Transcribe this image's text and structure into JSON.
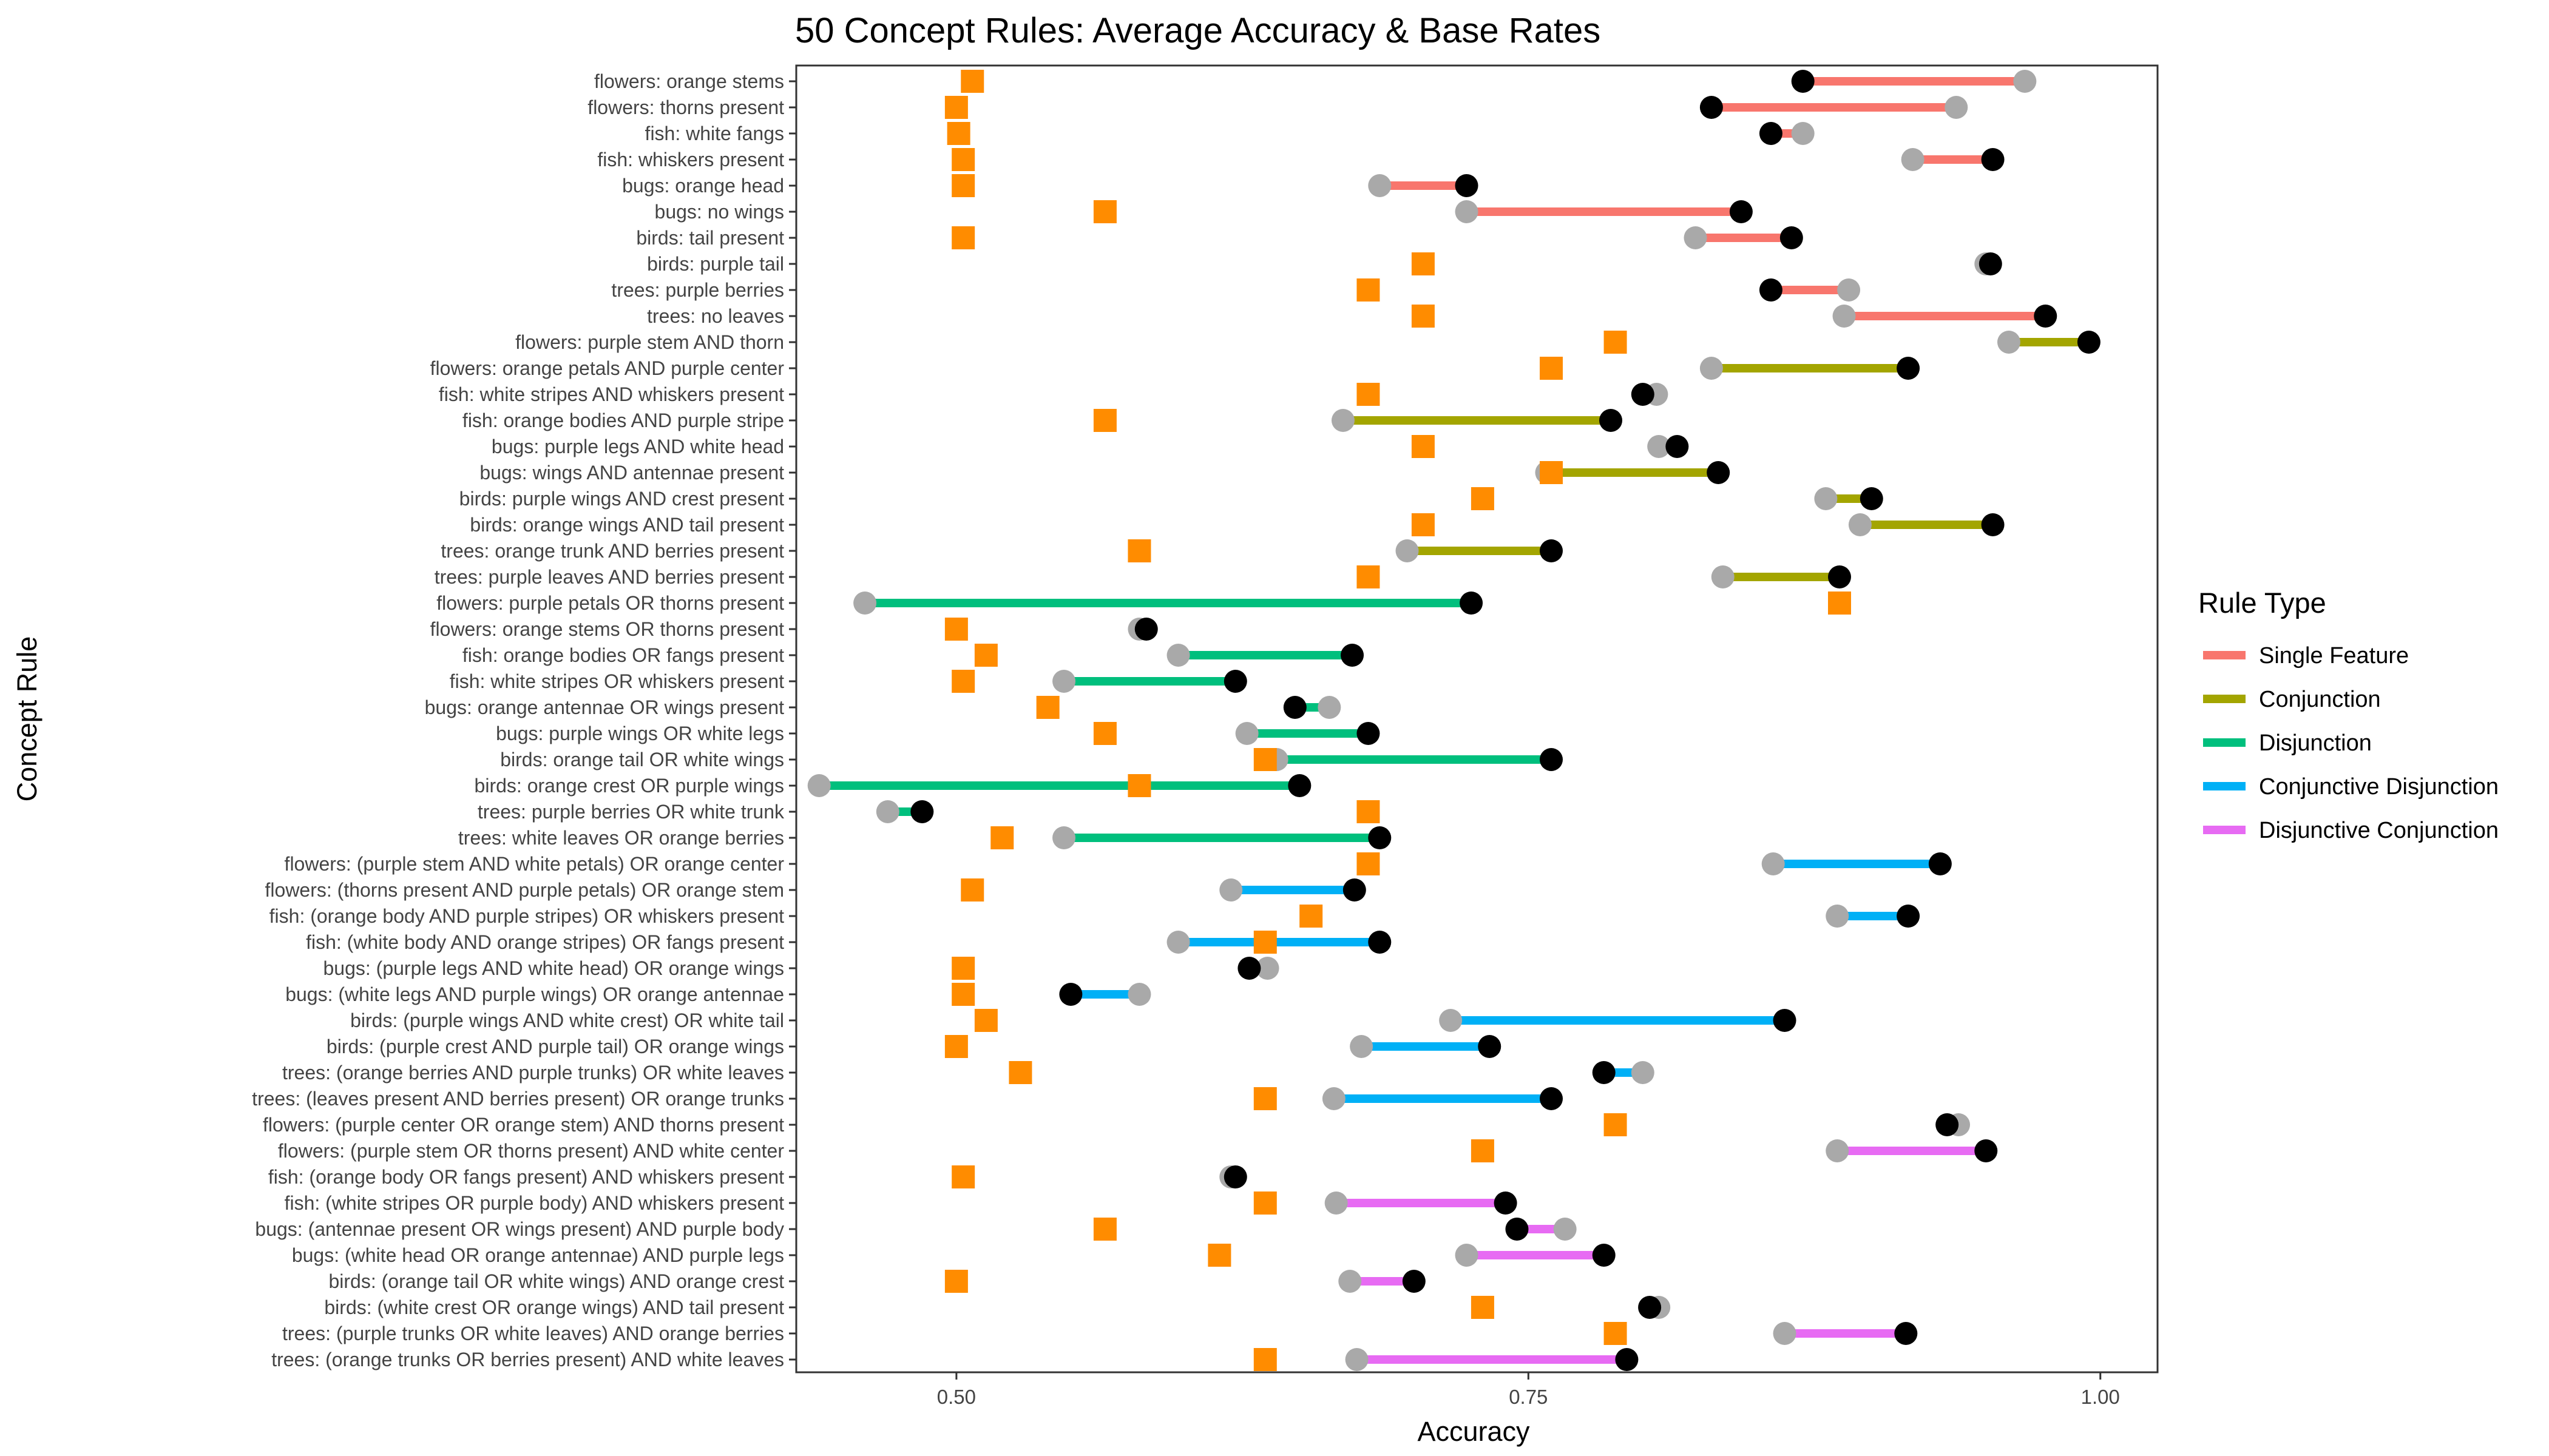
{
  "chart_data": {
    "type": "dumbbell",
    "title": "50 Concept Rules: Average Accuracy & Base Rates",
    "xlabel": "Accuracy",
    "ylabel": "Concept Rule",
    "xlim": [
      0.43,
      1.025
    ],
    "xticks": [
      0.5,
      0.75,
      1.0
    ],
    "xtick_labels": [
      "0.50",
      "0.75",
      "1.00"
    ],
    "grid": false,
    "legend": {
      "title": "Rule Type",
      "position": "right",
      "entries": [
        {
          "name": "Single Feature",
          "color": "#F8766D"
        },
        {
          "name": "Conjunction",
          "color": "#A3A500"
        },
        {
          "name": "Disjunction",
          "color": "#00BF7D"
        },
        {
          "name": "Conjunctive Disjunction",
          "color": "#00B0F6"
        },
        {
          "name": "Disjunctive Conjunction",
          "color": "#E76BF3"
        }
      ]
    },
    "marker_colors": {
      "gray_point": "#A9A9A9",
      "black_point": "#000000",
      "base_rate_square": "#FF8C00"
    },
    "rows": [
      {
        "rule": "flowers: orange stems",
        "type": "Single Feature",
        "gray": 0.967,
        "black": 0.87,
        "base": 0.507
      },
      {
        "rule": "flowers: thorns present",
        "type": "Single Feature",
        "gray": 0.937,
        "black": 0.83,
        "base": 0.5
      },
      {
        "rule": "fish: white fangs",
        "type": "Single Feature",
        "gray": 0.87,
        "black": 0.856,
        "base": 0.501
      },
      {
        "rule": "fish: whiskers present",
        "type": "Single Feature",
        "gray": 0.918,
        "black": 0.953,
        "base": 0.503
      },
      {
        "rule": "bugs: orange head",
        "type": "Single Feature",
        "gray": 0.685,
        "black": 0.723,
        "base": 0.503
      },
      {
        "rule": "bugs: no wings",
        "type": "Single Feature",
        "gray": 0.723,
        "black": 0.843,
        "base": 0.565
      },
      {
        "rule": "birds: tail present",
        "type": "Single Feature",
        "gray": 0.823,
        "black": 0.865,
        "base": 0.503
      },
      {
        "rule": "birds: purple tail",
        "type": "Single Feature",
        "gray": 0.95,
        "black": 0.952,
        "base": 0.704
      },
      {
        "rule": "trees: purple berries",
        "type": "Single Feature",
        "gray": 0.89,
        "black": 0.856,
        "base": 0.68
      },
      {
        "rule": "trees: no leaves",
        "type": "Single Feature",
        "gray": 0.888,
        "black": 0.976,
        "base": 0.704
      },
      {
        "rule": "flowers: purple stem AND thorn",
        "type": "Conjunction",
        "gray": 0.96,
        "black": 0.995,
        "base": 0.788
      },
      {
        "rule": "flowers: orange petals AND purple center",
        "type": "Conjunction",
        "gray": 0.83,
        "black": 0.916,
        "base": 0.76
      },
      {
        "rule": "fish: white stripes AND whiskers  present",
        "type": "Conjunction",
        "gray": 0.806,
        "black": 0.8,
        "base": 0.68
      },
      {
        "rule": "fish: orange bodies AND purple stripe",
        "type": "Conjunction",
        "gray": 0.669,
        "black": 0.786,
        "base": 0.565
      },
      {
        "rule": "bugs: purple legs AND white head",
        "type": "Conjunction",
        "gray": 0.807,
        "black": 0.815,
        "base": 0.704
      },
      {
        "rule": "bugs: wings AND antennae present",
        "type": "Conjunction",
        "gray": 0.758,
        "black": 0.833,
        "base": 0.76
      },
      {
        "rule": "birds: purple wings AND crest present",
        "type": "Conjunction",
        "gray": 0.88,
        "black": 0.9,
        "base": 0.73
      },
      {
        "rule": "birds: orange wings AND tail present",
        "type": "Conjunction",
        "gray": 0.895,
        "black": 0.953,
        "base": 0.704
      },
      {
        "rule": "trees: orange trunk AND berries present",
        "type": "Conjunction",
        "gray": 0.697,
        "black": 0.76,
        "base": 0.58
      },
      {
        "rule": "trees: purple leaves AND berries present",
        "type": "Conjunction",
        "gray": 0.835,
        "black": 0.886,
        "base": 0.68
      },
      {
        "rule": "flowers: purple petals OR thorns present",
        "type": "Disjunction",
        "gray": 0.46,
        "black": 0.725,
        "base": 0.886
      },
      {
        "rule": "flowers: orange stems OR thorns present",
        "type": "Disjunction",
        "gray": 0.58,
        "black": 0.583,
        "base": 0.5
      },
      {
        "rule": "fish: orange bodies OR fangs present",
        "type": "Disjunction",
        "gray": 0.597,
        "black": 0.673,
        "base": 0.513
      },
      {
        "rule": "fish: white stripes OR whiskers present",
        "type": "Disjunction",
        "gray": 0.547,
        "black": 0.622,
        "base": 0.503
      },
      {
        "rule": "bugs: orange antennae OR wings present",
        "type": "Disjunction",
        "gray": 0.663,
        "black": 0.648,
        "base": 0.54
      },
      {
        "rule": "bugs: purple wings OR white legs",
        "type": "Disjunction",
        "gray": 0.627,
        "black": 0.68,
        "base": 0.565
      },
      {
        "rule": "birds: orange tail OR white wings",
        "type": "Disjunction",
        "gray": 0.64,
        "black": 0.76,
        "base": 0.635
      },
      {
        "rule": "birds: orange crest OR purple wings",
        "type": "Disjunction",
        "gray": 0.44,
        "black": 0.65,
        "base": 0.58
      },
      {
        "rule": "trees: purple berries OR white trunk",
        "type": "Disjunction",
        "gray": 0.47,
        "black": 0.485,
        "base": 0.68
      },
      {
        "rule": "trees: white leaves OR orange berries",
        "type": "Disjunction",
        "gray": 0.547,
        "black": 0.685,
        "base": 0.52
      },
      {
        "rule": "flowers: (purple stem AND white petals) OR orange center",
        "type": "Conjunctive Disjunction",
        "gray": 0.857,
        "black": 0.93,
        "base": 0.68
      },
      {
        "rule": "flowers: (thorns present AND purple petals) OR orange stem",
        "type": "Conjunctive Disjunction",
        "gray": 0.62,
        "black": 0.674,
        "base": 0.507
      },
      {
        "rule": "fish: (orange body AND purple stripes) OR whiskers present",
        "type": "Conjunctive Disjunction",
        "gray": 0.885,
        "black": 0.916,
        "base": 0.655
      },
      {
        "rule": "fish: (white body AND orange stripes) OR fangs present",
        "type": "Conjunctive Disjunction",
        "gray": 0.597,
        "black": 0.685,
        "base": 0.635
      },
      {
        "rule": "bugs: (purple legs AND white head) OR orange wings",
        "type": "Conjunctive Disjunction",
        "gray": 0.636,
        "black": 0.628,
        "base": 0.503
      },
      {
        "rule": "bugs: (white legs AND purple wings) OR orange antennae",
        "type": "Conjunctive Disjunction",
        "gray": 0.58,
        "black": 0.55,
        "base": 0.503
      },
      {
        "rule": "birds: (purple wings AND white crest) OR white tail",
        "type": "Conjunctive Disjunction",
        "gray": 0.716,
        "black": 0.862,
        "base": 0.513
      },
      {
        "rule": "birds: (purple crest AND purple tail) OR orange wings",
        "type": "Conjunctive Disjunction",
        "gray": 0.677,
        "black": 0.733,
        "base": 0.5
      },
      {
        "rule": "trees: (orange berries AND purple trunks) OR white leaves",
        "type": "Conjunctive Disjunction",
        "gray": 0.8,
        "black": 0.783,
        "base": 0.528
      },
      {
        "rule": "trees: (leaves present AND berries present) OR orange trunks",
        "type": "Conjunctive Disjunction",
        "gray": 0.665,
        "black": 0.76,
        "base": 0.635
      },
      {
        "rule": "flowers: (purple center OR orange stem) AND thorns present",
        "type": "Disjunctive Conjunction",
        "gray": 0.938,
        "black": 0.933,
        "base": 0.788
      },
      {
        "rule": "flowers: (purple stem OR thorns present) AND white center",
        "type": "Disjunctive Conjunction",
        "gray": 0.885,
        "black": 0.95,
        "base": 0.73
      },
      {
        "rule": "fish: (orange body OR fangs present) AND whiskers present",
        "type": "Disjunctive Conjunction",
        "gray": 0.62,
        "black": 0.622,
        "base": 0.503
      },
      {
        "rule": "fish: (white stripes OR purple body) AND whiskers present",
        "type": "Disjunctive Conjunction",
        "gray": 0.666,
        "black": 0.74,
        "base": 0.635
      },
      {
        "rule": "bugs: (antennae present OR wings present) AND purple body",
        "type": "Disjunctive Conjunction",
        "gray": 0.766,
        "black": 0.745,
        "base": 0.565
      },
      {
        "rule": "bugs: (white head OR orange antennae) AND purple legs",
        "type": "Disjunctive Conjunction",
        "gray": 0.723,
        "black": 0.783,
        "base": 0.615
      },
      {
        "rule": "birds: (orange tail OR white wings) AND orange crest",
        "type": "Disjunctive Conjunction",
        "gray": 0.672,
        "black": 0.7,
        "base": 0.5
      },
      {
        "rule": "birds: (white crest OR orange wings) AND tail present",
        "type": "Disjunctive Conjunction",
        "gray": 0.807,
        "black": 0.803,
        "base": 0.73
      },
      {
        "rule": "trees: (purple trunks OR white leaves) AND orange berries",
        "type": "Disjunctive Conjunction",
        "gray": 0.862,
        "black": 0.915,
        "base": 0.788
      },
      {
        "rule": "trees: (orange trunks OR berries present) AND white leaves",
        "type": "Disjunctive Conjunction",
        "gray": 0.675,
        "black": 0.793,
        "base": 0.635
      }
    ]
  }
}
